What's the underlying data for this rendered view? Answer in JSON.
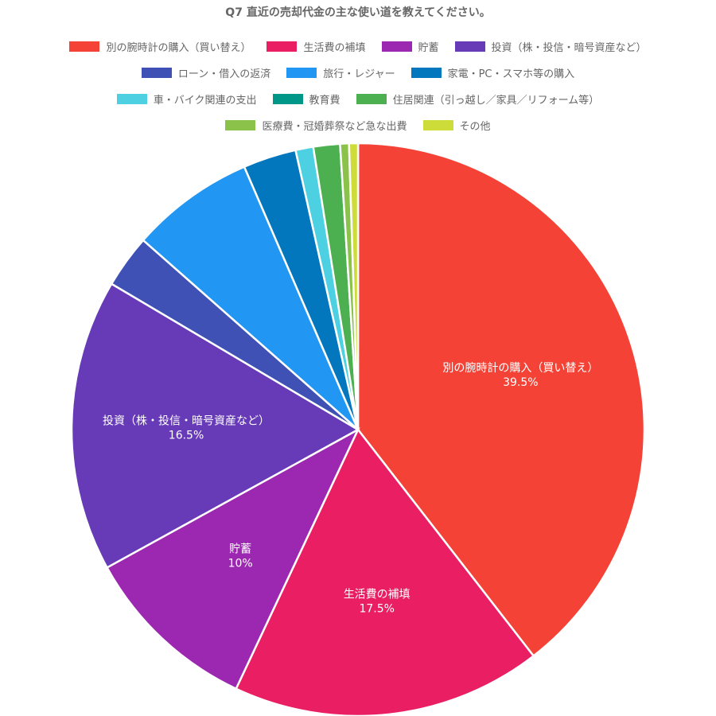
{
  "chart_data": {
    "type": "pie",
    "title": "Q7 直近の売却代金の主な使い道を教えてください。",
    "legend_position": "top",
    "categories": [
      "別の腕時計の購入（買い替え）",
      "生活費の補填",
      "貯蓄",
      "投資（株・投信・暗号資産など）",
      "ローン・借入の返済",
      "旅行・レジャー",
      "家電・PC・スマホ等の購入",
      "車・バイク関連の支出",
      "教育費",
      "住居関連（引っ越し／家具／リフォーム等）",
      "医療費・冠婚葬祭など急な出費",
      "その他"
    ],
    "values": [
      39.5,
      17.5,
      10,
      16.5,
      3,
      7,
      3,
      1,
      0,
      1.5,
      0.5,
      0.5
    ],
    "colors": [
      "#f44336",
      "#e91e63",
      "#9c27b0",
      "#673ab7",
      "#3f51b5",
      "#2196f3",
      "#0277bd",
      "#4dd0e1",
      "#009688",
      "#4caf50",
      "#8bc34a",
      "#cddc39"
    ],
    "data_labels": [
      {
        "name": "別の腕時計の購入（買い替え）",
        "value": "39.5%"
      },
      {
        "name": "生活費の補填",
        "value": "17.5%"
      },
      {
        "name": "貯蓄",
        "value": "10%"
      },
      {
        "name": "投資（株・投信・暗号資産など）",
        "value": "16.5%"
      }
    ]
  }
}
